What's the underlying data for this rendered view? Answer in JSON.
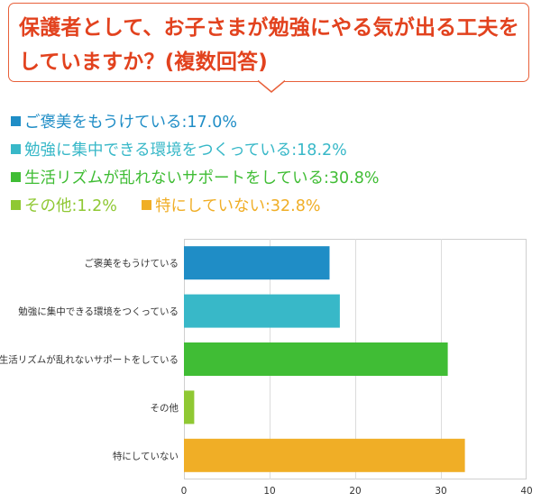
{
  "question": {
    "text": "保護者として、お子さまが勉強にやる気が出る工夫をしていますか？(複数回答)"
  },
  "colors": {
    "title": "#e2421e",
    "box_border": "#e8603a"
  },
  "legend": {
    "items": [
      {
        "label": "ご褒美をもうけている:17.0%",
        "color": "#1f8dc6"
      },
      {
        "label": "勉強に集中できる環境をつくっている:18.2%",
        "color": "#38b8c8"
      },
      {
        "label": "生活リズムが乱れないサポートをしている:30.8%",
        "color": "#40bd35"
      },
      {
        "label": "その他:1.2%",
        "color": "#8fc833"
      },
      {
        "label": "特にしていない:32.8%",
        "color": "#f0ae26"
      }
    ]
  },
  "chart_data": {
    "type": "bar",
    "orientation": "horizontal",
    "categories": [
      "ご褒美をもうけている",
      "勉強に集中できる環境をつくっている",
      "生活リズムが乱れないサポートをしている",
      "その他",
      "特にしていない"
    ],
    "values": [
      17.0,
      18.2,
      30.8,
      1.2,
      32.8
    ],
    "colors": [
      "#1f8dc6",
      "#38b8c8",
      "#40bd35",
      "#8fc833",
      "#f0ae26"
    ],
    "xlim": [
      0,
      40
    ],
    "xticks": [
      "0",
      "10",
      "20",
      "30",
      "40"
    ],
    "grid": true
  }
}
